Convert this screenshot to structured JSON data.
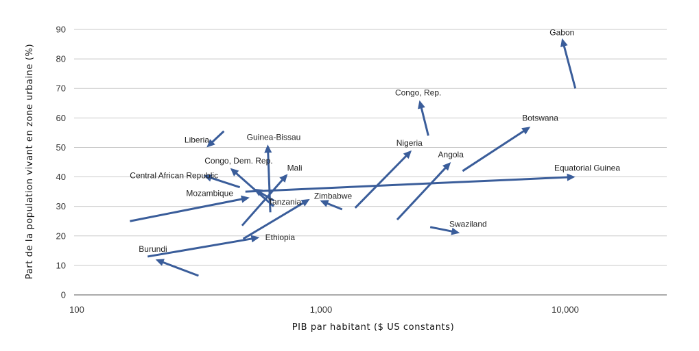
{
  "chart_data": {
    "type": "scatter",
    "subtype": "arrow-trajectories",
    "title": "",
    "xlabel": "PIB par habitant ($ US constants)",
    "ylabel": "Part de la population vivant en zone urbaine (%)",
    "x_scale": "log",
    "xlim": [
      100,
      25000
    ],
    "ylim": [
      0,
      90
    ],
    "x_ticks": [
      100,
      1000,
      10000
    ],
    "x_tick_labels": [
      "100",
      "1,000",
      "10,000"
    ],
    "y_ticks": [
      0,
      10,
      20,
      30,
      40,
      50,
      60,
      70,
      80,
      90
    ],
    "y_tick_labels": [
      "0",
      "10",
      "20",
      "30",
      "40",
      "50",
      "60",
      "70",
      "80",
      "90"
    ],
    "grid": "horizontal",
    "arrow_color": "#3a5d9a",
    "series": [
      {
        "name": "Gabon",
        "from": {
          "x": 11000,
          "y": 70
        },
        "to": {
          "x": 9700,
          "y": 87
        }
      },
      {
        "name": "Congo, Rep.",
        "from": {
          "x": 2750,
          "y": 54
        },
        "to": {
          "x": 2530,
          "y": 66
        }
      },
      {
        "name": "Botswana",
        "from": {
          "x": 3800,
          "y": 42
        },
        "to": {
          "x": 7200,
          "y": 57
        }
      },
      {
        "name": "Nigeria",
        "from": {
          "x": 1380,
          "y": 29.5
        },
        "to": {
          "x": 2350,
          "y": 49
        }
      },
      {
        "name": "Angola",
        "from": {
          "x": 2050,
          "y": 25.5
        },
        "to": {
          "x": 3400,
          "y": 45
        }
      },
      {
        "name": "Equatorial Guinea",
        "from": {
          "x": 490,
          "y": 35
        },
        "to": {
          "x": 11000,
          "y": 40
        }
      },
      {
        "name": "Swaziland",
        "from": {
          "x": 2800,
          "y": 23
        },
        "to": {
          "x": 3700,
          "y": 21
        }
      },
      {
        "name": "Liberia",
        "from": {
          "x": 400,
          "y": 55.5
        },
        "to": {
          "x": 340,
          "y": 50
        }
      },
      {
        "name": "Guinea-Bissau",
        "from": {
          "x": 620,
          "y": 28
        },
        "to": {
          "x": 605,
          "y": 51
        }
      },
      {
        "name": "Congo, Dem. Rep.",
        "from": {
          "x": 640,
          "y": 30
        },
        "to": {
          "x": 425,
          "y": 43
        }
      },
      {
        "name": "Mali",
        "from": {
          "x": 475,
          "y": 23.5
        },
        "to": {
          "x": 730,
          "y": 41
        }
      },
      {
        "name": "Central African Republic",
        "from": {
          "x": 465,
          "y": 36.5
        },
        "to": {
          "x": 330,
          "y": 40.5
        }
      },
      {
        "name": "Mozambique",
        "from": {
          "x": 165,
          "y": 25
        },
        "to": {
          "x": 510,
          "y": 33
        }
      },
      {
        "name": "Tanzania",
        "from": {
          "x": 640,
          "y": 32
        },
        "to": {
          "x": 530,
          "y": 36
        }
      },
      {
        "name": "Zimbabwe",
        "from": {
          "x": 1220,
          "y": 29
        },
        "to": {
          "x": 990,
          "y": 32
        }
      },
      {
        "name": "Ethiopia",
        "from": {
          "x": 195,
          "y": 13
        },
        "to": {
          "x": 560,
          "y": 19.5
        }
      },
      {
        "name": "Tanzania",
        "from": {
          "x": 480,
          "y": 19
        },
        "to": {
          "x": 900,
          "y": 32.5
        }
      },
      {
        "name": "Burundi",
        "from": {
          "x": 315,
          "y": 6.5
        },
        "to": {
          "x": 210,
          "y": 12
        }
      }
    ],
    "annotations": [
      {
        "text": "Gabon",
        "x": 9700,
        "y": 89,
        "anchor": "middle"
      },
      {
        "text": "Congo, Rep.",
        "x": 2500,
        "y": 68.5,
        "anchor": "middle"
      },
      {
        "text": "Botswana",
        "x": 7900,
        "y": 60,
        "anchor": "middle"
      },
      {
        "text": "Nigeria",
        "x": 2300,
        "y": 51.5,
        "anchor": "middle"
      },
      {
        "text": "Angola",
        "x": 3400,
        "y": 47.5,
        "anchor": "middle"
      },
      {
        "text": "Equatorial Guinea",
        "x": 12300,
        "y": 43,
        "anchor": "middle"
      },
      {
        "text": "Swaziland",
        "x": 4000,
        "y": 24,
        "anchor": "middle"
      },
      {
        "text": "Liberia",
        "x": 310,
        "y": 52.5,
        "anchor": "middle"
      },
      {
        "text": "Guinea-Bissau",
        "x": 640,
        "y": 53.5,
        "anchor": "middle"
      },
      {
        "text": "Congo, Dem. Rep.",
        "x": 460,
        "y": 45.5,
        "anchor": "middle"
      },
      {
        "text": "Mali",
        "x": 780,
        "y": 43,
        "anchor": "middle"
      },
      {
        "text": "Central African Republic",
        "x": 250,
        "y": 40.5,
        "anchor": "middle"
      },
      {
        "text": "Mozambique",
        "x": 350,
        "y": 34.5,
        "anchor": "middle"
      },
      {
        "text": "Tanzania",
        "x": 710,
        "y": 31.5,
        "anchor": "middle"
      },
      {
        "text": "Zimbabwe",
        "x": 1120,
        "y": 33.5,
        "anchor": "middle"
      },
      {
        "text": "Ethiopia",
        "x": 680,
        "y": 19.5,
        "anchor": "middle"
      },
      {
        "text": "Burundi",
        "x": 205,
        "y": 15.5,
        "anchor": "middle"
      }
    ]
  }
}
